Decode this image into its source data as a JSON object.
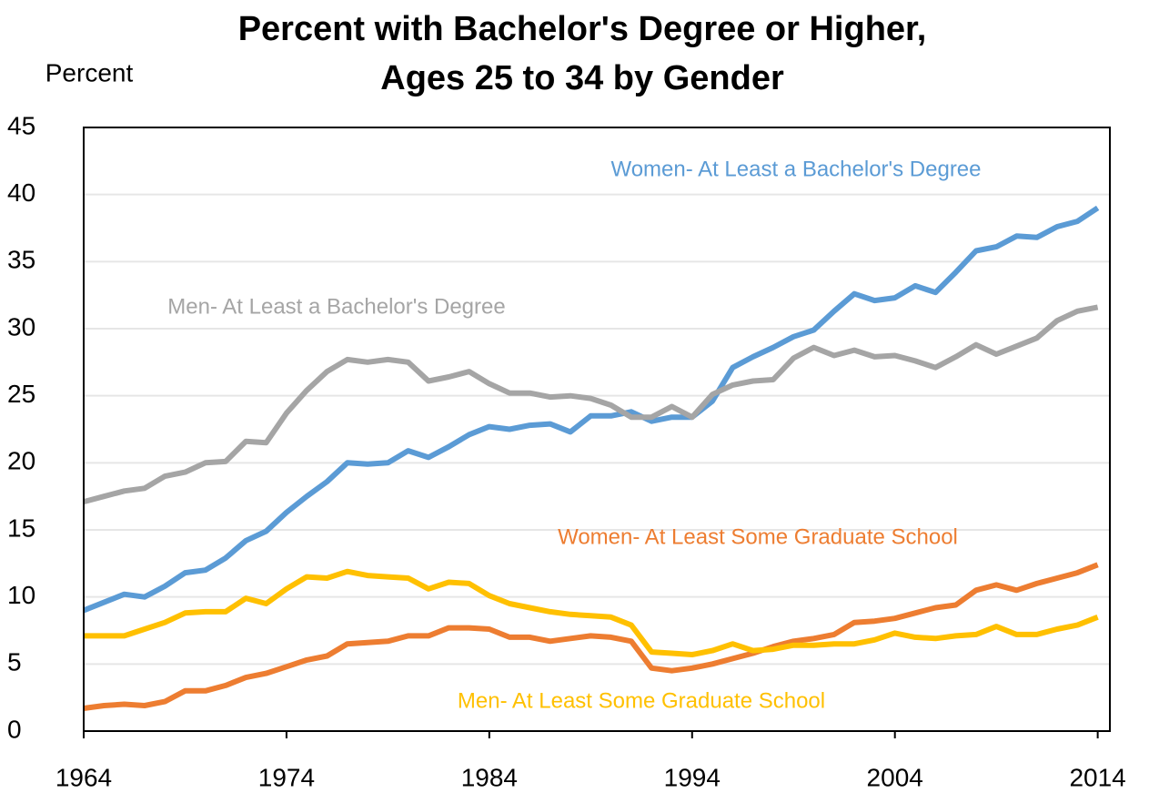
{
  "chart_data": {
    "type": "line",
    "title": [
      "Percent with Bachelor's Degree or Higher,",
      "Ages 25 to 34 by Gender"
    ],
    "y_label": "Percent",
    "x": [
      1964,
      1965,
      1966,
      1967,
      1968,
      1969,
      1970,
      1971,
      1972,
      1973,
      1974,
      1975,
      1976,
      1977,
      1978,
      1979,
      1980,
      1981,
      1982,
      1983,
      1984,
      1985,
      1986,
      1987,
      1988,
      1989,
      1990,
      1991,
      1992,
      1993,
      1994,
      1995,
      1996,
      1997,
      1998,
      1999,
      2000,
      2001,
      2002,
      2003,
      2004,
      2005,
      2006,
      2007,
      2008,
      2009,
      2010,
      2011,
      2012,
      2013,
      2014
    ],
    "series": [
      {
        "name": "Women- At Least a Bachelor's Degree",
        "color": "#5b9bd5",
        "values": [
          9.0,
          9.6,
          10.2,
          10.0,
          10.8,
          11.8,
          12.0,
          12.9,
          14.2,
          14.9,
          16.3,
          17.5,
          18.6,
          20.0,
          19.9,
          20.0,
          20.9,
          20.4,
          21.2,
          22.1,
          22.7,
          22.5,
          22.8,
          22.9,
          22.3,
          23.5,
          23.5,
          23.8,
          23.1,
          23.4,
          23.4,
          24.6,
          27.1,
          27.9,
          28.6,
          29.4,
          29.9,
          31.3,
          32.6,
          32.1,
          32.3,
          33.2,
          32.7,
          34.2,
          35.8,
          36.1,
          36.9,
          36.8,
          37.6,
          38.0,
          39.0
        ]
      },
      {
        "name": "Men- At Least a Bachelor's Degree",
        "color": "#a5a5a5",
        "values": [
          17.1,
          17.5,
          17.9,
          18.1,
          19.0,
          19.3,
          20.0,
          20.1,
          21.6,
          21.5,
          23.7,
          25.4,
          26.8,
          27.7,
          27.5,
          27.7,
          27.5,
          26.1,
          26.4,
          26.8,
          25.9,
          25.2,
          25.2,
          24.9,
          25.0,
          24.8,
          24.3,
          23.4,
          23.4,
          24.2,
          23.4,
          25.1,
          25.8,
          26.1,
          26.2,
          27.8,
          28.6,
          28.0,
          28.4,
          27.9,
          28.0,
          27.6,
          27.1,
          27.9,
          28.8,
          28.1,
          28.7,
          29.3,
          30.6,
          31.3,
          31.6
        ]
      },
      {
        "name": "Women- At Least Some Graduate School",
        "color": "#ed7d31",
        "values": [
          1.7,
          1.9,
          2.0,
          1.9,
          2.2,
          3.0,
          3.0,
          3.4,
          4.0,
          4.3,
          4.8,
          5.3,
          5.6,
          6.5,
          6.6,
          6.7,
          7.1,
          7.1,
          7.7,
          7.7,
          7.6,
          7.0,
          7.0,
          6.7,
          6.9,
          7.1,
          7.0,
          6.7,
          4.7,
          4.5,
          4.7,
          5.0,
          5.4,
          5.8,
          6.3,
          6.7,
          6.9,
          7.2,
          8.1,
          8.2,
          8.4,
          8.8,
          9.2,
          9.4,
          10.5,
          10.9,
          10.5,
          11.0,
          11.4,
          11.8,
          12.4
        ]
      },
      {
        "name": "Men- At Least Some Graduate School",
        "color": "#ffc000",
        "values": [
          7.1,
          7.1,
          7.1,
          7.6,
          8.1,
          8.8,
          8.9,
          8.9,
          9.9,
          9.5,
          10.6,
          11.5,
          11.4,
          11.9,
          11.6,
          11.5,
          11.4,
          10.6,
          11.1,
          11.0,
          10.1,
          9.5,
          9.2,
          8.9,
          8.7,
          8.6,
          8.5,
          7.9,
          5.9,
          5.8,
          5.7,
          6.0,
          6.5,
          6.0,
          6.1,
          6.4,
          6.4,
          6.5,
          6.5,
          6.8,
          7.3,
          7.0,
          6.9,
          7.1,
          7.2,
          7.8,
          7.2,
          7.2,
          7.6,
          7.9,
          8.5
        ]
      }
    ],
    "xlim": [
      1964,
      2014.6
    ],
    "xticks": [
      1964,
      1974,
      1984,
      1994,
      2004,
      2014
    ],
    "ylim": [
      0,
      45
    ],
    "yticks": [
      0,
      5,
      10,
      15,
      20,
      25,
      30,
      35,
      40,
      45
    ],
    "grid": true,
    "legend": "inline"
  }
}
